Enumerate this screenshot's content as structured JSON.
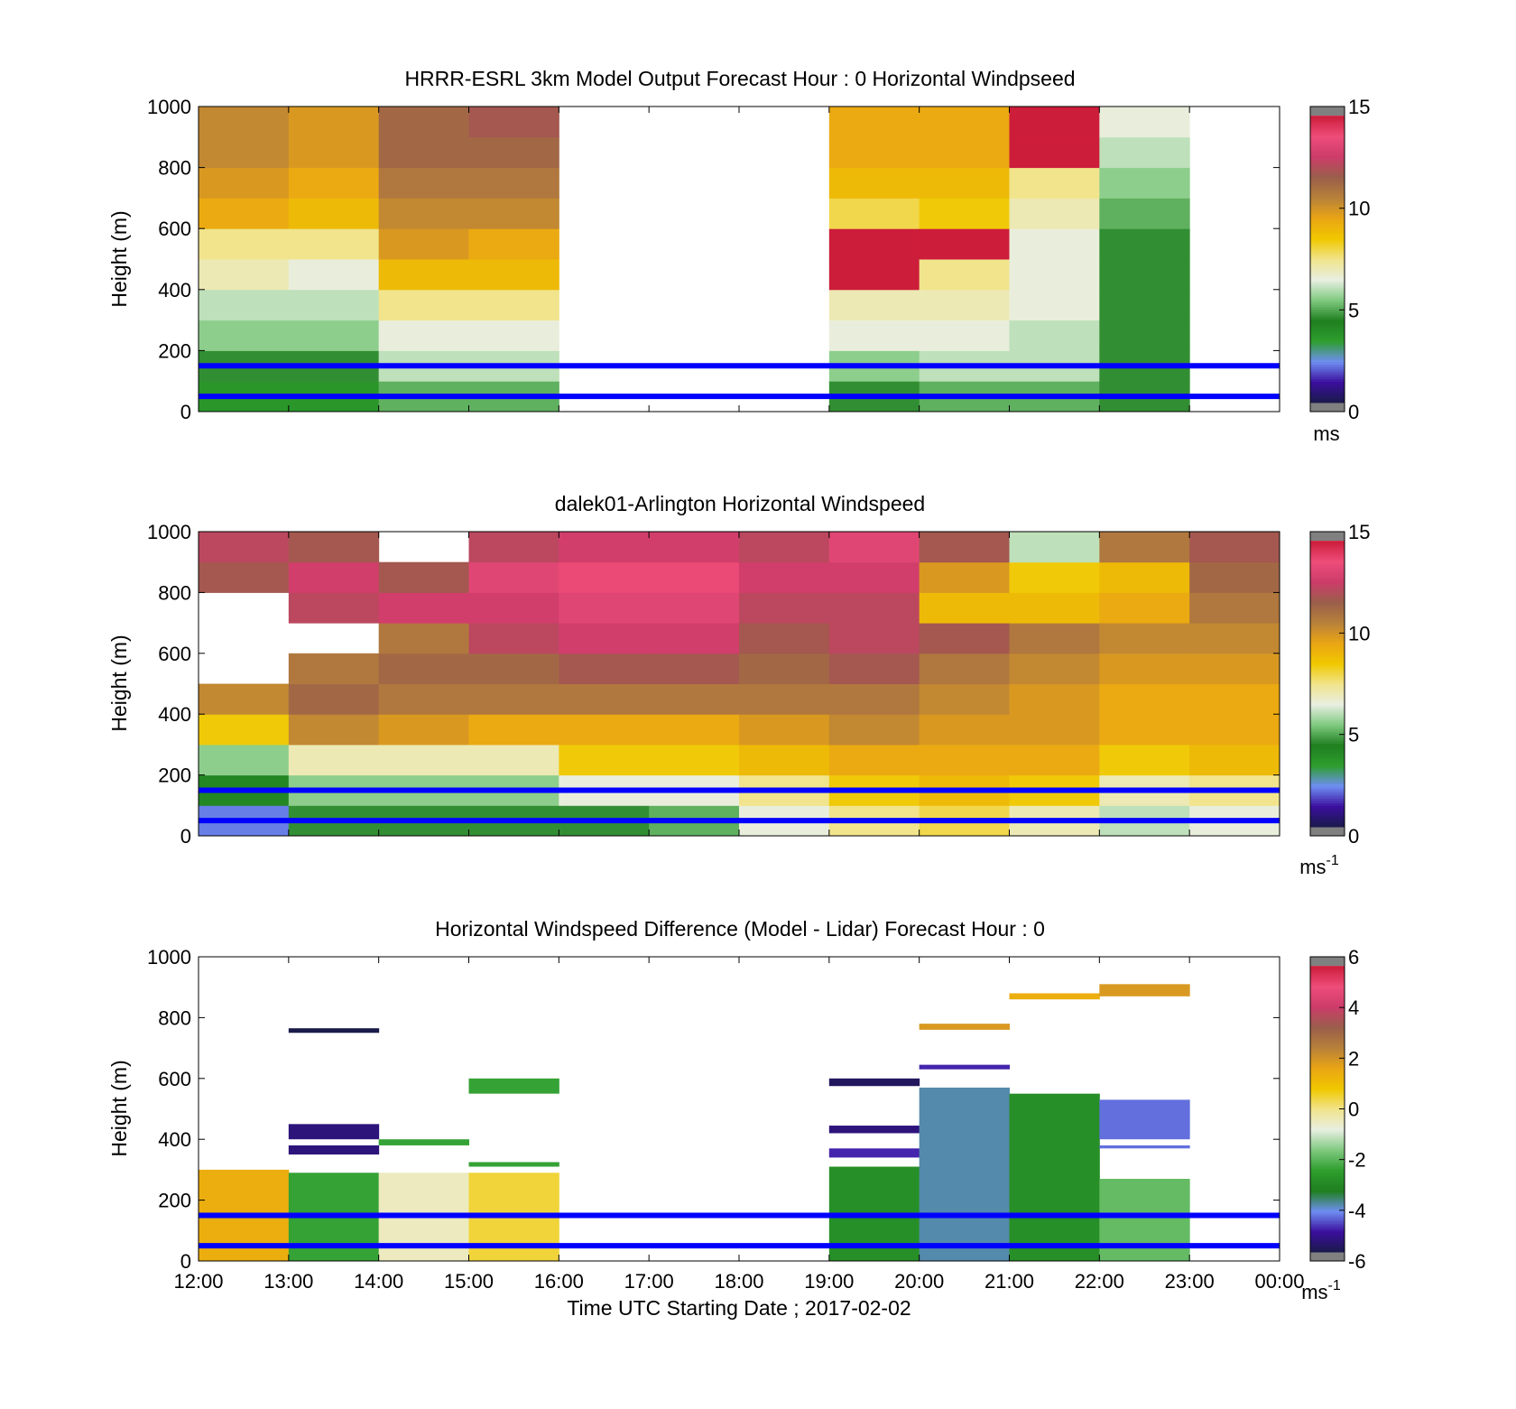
{
  "colors": {
    "guide_lines": "#0000ff",
    "no_data": "#ffffff",
    "frame": "#000000",
    "speed_scale": [
      "#1a1a4a",
      "#3b0f9e",
      "#6f8ff2",
      "#2e9e2e",
      "#1f7f1f",
      "#7fc97f",
      "#e8efe2",
      "#f1e48c",
      "#f0c800",
      "#eaa514",
      "#b8813a",
      "#9a5f4a",
      "#cc3c6a",
      "#ee4d7a",
      "#cc1d3a"
    ],
    "diff_scale": [
      "#1a1a4a",
      "#3b0f9e",
      "#6f8ff2",
      "#1f7f1f",
      "#2e9e2e",
      "#7fc97f",
      "#e8efe2",
      "#f1e48c",
      "#f0c800",
      "#eaa514",
      "#b8813a",
      "#9a5f4a",
      "#cc3c6a",
      "#ee4d7a",
      "#cc1d3a"
    ]
  },
  "xaxis": {
    "ticks": [
      "12:00",
      "13:00",
      "14:00",
      "15:00",
      "16:00",
      "17:00",
      "18:00",
      "19:00",
      "20:00",
      "21:00",
      "22:00",
      "23:00",
      "00:00"
    ],
    "label": "Time UTC  Starting Date ; 2017-02-02"
  },
  "chart_data": [
    {
      "type": "heatmap",
      "title": "HRRR-ESRL 3km Model Output   Forecast Hour : 0 Horizontal Windpseed",
      "ylabel": "Height (m)",
      "ylim": [
        0,
        1000
      ],
      "yticks": [
        "0",
        "200",
        "400",
        "600",
        "800",
        "1000"
      ],
      "colorbar": {
        "range": [
          0,
          15
        ],
        "ticks": [
          "0",
          "5",
          "10",
          "15"
        ],
        "unit": "ms"
      },
      "reference_heights_m": [
        50,
        150
      ],
      "bin_height_m": 100,
      "hours": [
        {
          "start": "12:00",
          "speeds_from_bottom": [
            3.5,
            4.5,
            5.5,
            6.0,
            7.0,
            7.5,
            9.5,
            10.0,
            10.5,
            10.5
          ]
        },
        {
          "start": "13:00",
          "speeds_from_bottom": [
            3.5,
            4.5,
            5.5,
            6.0,
            6.5,
            7.5,
            9.0,
            9.5,
            10.0,
            10.0
          ]
        },
        {
          "start": "14:00",
          "speeds_from_bottom": [
            5.0,
            6.0,
            6.5,
            7.5,
            9.0,
            10.0,
            10.5,
            11.0,
            11.5,
            11.5
          ]
        },
        {
          "start": "15:00",
          "speeds_from_bottom": [
            5.0,
            6.0,
            6.5,
            7.5,
            9.0,
            9.5,
            10.5,
            11.0,
            11.5,
            12.0
          ]
        },
        {
          "start": "16:00",
          "speeds_from_bottom": []
        },
        {
          "start": "17:00",
          "speeds_from_bottom": []
        },
        {
          "start": "18:00",
          "speeds_from_bottom": []
        },
        {
          "start": "19:00",
          "speeds_from_bottom": [
            4.5,
            5.5,
            6.5,
            7.0,
            15.0,
            15.0,
            8.0,
            9.0,
            9.5,
            9.5
          ]
        },
        {
          "start": "20:00",
          "speeds_from_bottom": [
            5.0,
            6.0,
            6.5,
            7.0,
            7.5,
            15.0,
            8.5,
            9.0,
            9.5,
            9.5
          ]
        },
        {
          "start": "21:00",
          "speeds_from_bottom": [
            5.0,
            6.0,
            6.0,
            6.5,
            6.5,
            6.5,
            7.0,
            7.5,
            15.0,
            15.0
          ]
        },
        {
          "start": "22:00",
          "speeds_from_bottom": [
            4.5,
            4.5,
            4.5,
            4.5,
            4.5,
            4.5,
            5.0,
            5.5,
            6.0,
            6.5
          ]
        },
        {
          "start": "23:00",
          "speeds_from_bottom": []
        }
      ]
    },
    {
      "type": "heatmap",
      "title": "dalek01-Arlington  Horizontal Windspeed",
      "ylabel": "Height (m)",
      "ylim": [
        0,
        1000
      ],
      "yticks": [
        "0",
        "200",
        "400",
        "600",
        "800",
        "1000"
      ],
      "colorbar": {
        "range": [
          0,
          15
        ],
        "ticks": [
          "0",
          "5",
          "10",
          "15"
        ],
        "unit": "ms",
        "unit_exponent": "-1"
      },
      "reference_heights_m": [
        50,
        150
      ],
      "bin_height_m": 100,
      "hours": [
        {
          "start": "12:00",
          "speeds_from_bottom": [
            2.0,
            4.0,
            5.5,
            8.5,
            10.5,
            null,
            null,
            null,
            12.0,
            12.5
          ]
        },
        {
          "start": "13:00",
          "speeds_from_bottom": [
            4.5,
            5.5,
            7.0,
            10.5,
            11.5,
            11.0,
            null,
            12.5,
            13.0,
            12.0
          ]
        },
        {
          "start": "14:00",
          "speeds_from_bottom": [
            4.5,
            5.5,
            7.0,
            10.0,
            11.0,
            11.5,
            11.0,
            13.0,
            12.0,
            null
          ]
        },
        {
          "start": "15:00",
          "speeds_from_bottom": [
            4.5,
            5.5,
            7.0,
            9.5,
            11.0,
            11.5,
            12.5,
            13.0,
            13.5,
            12.5
          ]
        },
        {
          "start": "16:00",
          "speeds_from_bottom": [
            4.5,
            6.5,
            8.5,
            9.5,
            11.0,
            12.0,
            13.0,
            13.5,
            14.0,
            13.0
          ]
        },
        {
          "start": "17:00",
          "speeds_from_bottom": [
            5.0,
            6.5,
            8.5,
            9.5,
            11.0,
            12.0,
            13.0,
            13.5,
            14.0,
            13.0
          ]
        },
        {
          "start": "18:00",
          "speeds_from_bottom": [
            6.5,
            7.5,
            9.0,
            10.0,
            11.0,
            11.5,
            12.0,
            12.5,
            13.0,
            12.5
          ]
        },
        {
          "start": "19:00",
          "speeds_from_bottom": [
            7.5,
            8.5,
            9.5,
            10.5,
            11.0,
            12.0,
            12.5,
            12.5,
            13.0,
            13.5
          ]
        },
        {
          "start": "20:00",
          "speeds_from_bottom": [
            8.0,
            9.0,
            9.5,
            10.0,
            10.5,
            11.0,
            12.0,
            9.0,
            10.0,
            12.0
          ]
        },
        {
          "start": "21:00",
          "speeds_from_bottom": [
            7.0,
            8.5,
            9.5,
            10.0,
            10.0,
            10.5,
            11.0,
            9.0,
            8.5,
            6.0
          ]
        },
        {
          "start": "22:00",
          "speeds_from_bottom": [
            6.0,
            7.0,
            8.5,
            9.5,
            9.5,
            10.0,
            10.5,
            9.5,
            9.0,
            11.0
          ]
        },
        {
          "start": "23:00",
          "speeds_from_bottom": [
            6.5,
            7.5,
            9.0,
            9.5,
            9.5,
            10.0,
            10.5,
            11.0,
            11.5,
            12.0
          ]
        }
      ]
    },
    {
      "type": "heatmap",
      "title": "Horizontal Windspeed Difference (Model - Lidar) Forecast Hour : 0",
      "ylabel": "Height (m)",
      "ylim": [
        0,
        1000
      ],
      "yticks": [
        "0",
        "200",
        "400",
        "600",
        "800",
        "1000"
      ],
      "colorbar": {
        "range": [
          -6,
          6
        ],
        "ticks": [
          "-6",
          "-4",
          "-2",
          "0",
          "2",
          "4",
          "6"
        ],
        "unit": "ms",
        "unit_exponent": "-1"
      },
      "reference_heights_m": [
        50,
        150
      ],
      "hours": [
        {
          "start": "12:00",
          "bands": [
            {
              "from": 0,
              "to": 300,
              "value": 1.5
            }
          ]
        },
        {
          "start": "13:00",
          "bands": [
            {
              "from": 0,
              "to": 290,
              "value": -2.5
            },
            {
              "from": 350,
              "to": 380,
              "value": -5.5
            },
            {
              "from": 400,
              "to": 450,
              "value": -5.5
            },
            {
              "from": 750,
              "to": 765,
              "value": -6.0
            }
          ]
        },
        {
          "start": "14:00",
          "bands": [
            {
              "from": 0,
              "to": 290,
              "value": -0.5
            },
            {
              "from": 380,
              "to": 400,
              "value": -2.5
            }
          ]
        },
        {
          "start": "15:00",
          "bands": [
            {
              "from": 0,
              "to": 290,
              "value": 0.5
            },
            {
              "from": 310,
              "to": 325,
              "value": -2.5
            },
            {
              "from": 550,
              "to": 600,
              "value": -2.5
            }
          ]
        },
        {
          "start": "16:00",
          "bands": []
        },
        {
          "start": "17:00",
          "bands": []
        },
        {
          "start": "18:00",
          "bands": []
        },
        {
          "start": "19:00",
          "bands": [
            {
              "from": 0,
              "to": 310,
              "value": -3.0
            },
            {
              "from": 340,
              "to": 370,
              "value": -5.0
            },
            {
              "from": 420,
              "to": 445,
              "value": -5.5
            },
            {
              "from": 575,
              "to": 600,
              "value": -5.8
            }
          ]
        },
        {
          "start": "20:00",
          "bands": [
            {
              "from": 0,
              "to": 570,
              "value": -4.0
            },
            {
              "from": 630,
              "to": 645,
              "value": -5.0
            },
            {
              "from": 760,
              "to": 780,
              "value": 2.0
            }
          ]
        },
        {
          "start": "21:00",
          "bands": [
            {
              "from": 0,
              "to": 550,
              "value": -3.0
            },
            {
              "from": 860,
              "to": 880,
              "value": 1.5
            }
          ]
        },
        {
          "start": "22:00",
          "bands": [
            {
              "from": 0,
              "to": 270,
              "value": -2.0
            },
            {
              "from": 370,
              "to": 380,
              "value": -4.5
            },
            {
              "from": 400,
              "to": 530,
              "value": -4.5
            },
            {
              "from": 870,
              "to": 910,
              "value": 2.0
            }
          ]
        },
        {
          "start": "23:00",
          "bands": []
        }
      ]
    }
  ]
}
